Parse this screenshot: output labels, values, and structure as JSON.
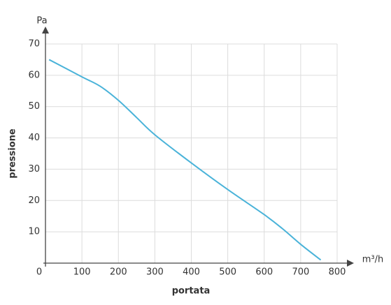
{
  "chart_data": {
    "type": "line",
    "y_label_top": "Pa",
    "x_label_right": "m³/h",
    "ylabel": "pressione",
    "xlabel": "portata",
    "x": [
      10,
      100,
      150,
      200,
      250,
      300,
      400,
      500,
      600,
      650,
      700,
      755
    ],
    "values": [
      65,
      59.5,
      56.5,
      52,
      46.5,
      41,
      32,
      23.5,
      15.5,
      11,
      6,
      1
    ],
    "color": "#4ab3d9",
    "xlim": [
      0,
      800
    ],
    "xticks": [
      0,
      100,
      200,
      300,
      400,
      500,
      600,
      700,
      800
    ],
    "ylim": [
      0,
      70
    ],
    "yticks": [
      10,
      20,
      30,
      40,
      50,
      60,
      70
    ],
    "grid": true
  }
}
